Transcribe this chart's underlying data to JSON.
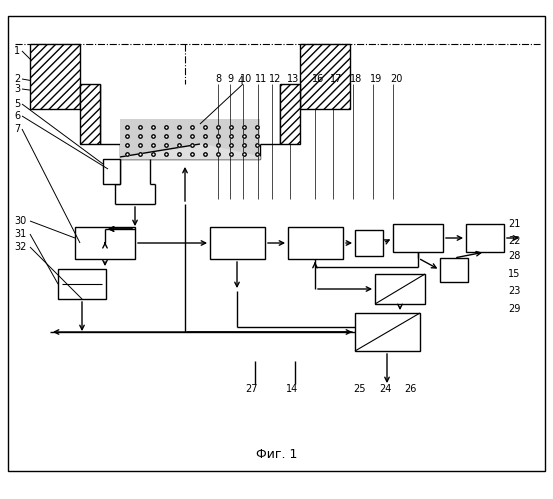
{
  "title": "Фиг. 1",
  "background": "#ffffff",
  "fig_width": 5.53,
  "fig_height": 4.99,
  "dpi": 100
}
